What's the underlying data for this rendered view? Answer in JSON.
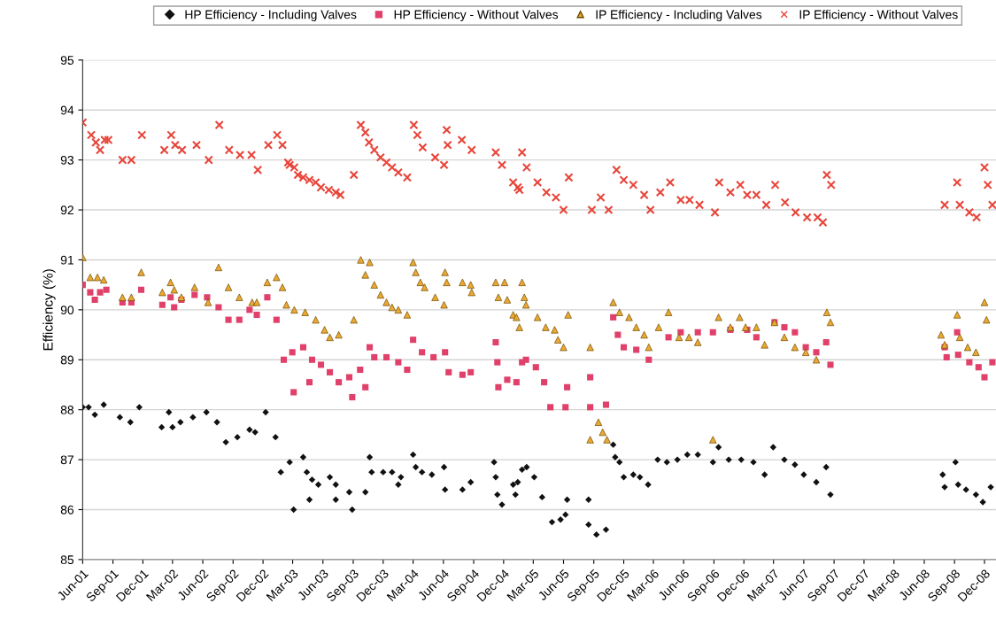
{
  "chart_data": {
    "type": "scatter",
    "ylabel": "Efficiency (%)",
    "legend": "top",
    "grid": "y",
    "xlim": [
      "2001-06-01",
      "2009-01-05"
    ],
    "ylim": [
      85,
      95
    ],
    "yticks": [
      85,
      86,
      87,
      88,
      89,
      90,
      91,
      92,
      93,
      94,
      95
    ],
    "xticks": [
      {
        "value": "2001-06-01",
        "label": "Jun-01"
      },
      {
        "value": "2001-09-01",
        "label": "Sep-01"
      },
      {
        "value": "2001-12-01",
        "label": "Dec-01"
      },
      {
        "value": "2002-03-01",
        "label": "Mar-02"
      },
      {
        "value": "2002-06-01",
        "label": "Jun-02"
      },
      {
        "value": "2002-09-01",
        "label": "Sep-02"
      },
      {
        "value": "2002-12-01",
        "label": "Dec-02"
      },
      {
        "value": "2003-03-01",
        "label": "Mar-03"
      },
      {
        "value": "2003-06-01",
        "label": "Jun-03"
      },
      {
        "value": "2003-09-01",
        "label": "Sep-03"
      },
      {
        "value": "2003-12-01",
        "label": "Dec-03"
      },
      {
        "value": "2004-03-01",
        "label": "Mar-04"
      },
      {
        "value": "2004-06-01",
        "label": "Jun-04"
      },
      {
        "value": "2004-09-01",
        "label": "Sep-04"
      },
      {
        "value": "2004-12-01",
        "label": "Dec-04"
      },
      {
        "value": "2005-03-01",
        "label": "Mar-05"
      },
      {
        "value": "2005-06-01",
        "label": "Jun-05"
      },
      {
        "value": "2005-09-01",
        "label": "Sep-05"
      },
      {
        "value": "2005-12-01",
        "label": "Dec-05"
      },
      {
        "value": "2006-03-01",
        "label": "Mar-06"
      },
      {
        "value": "2006-06-01",
        "label": "Jun-06"
      },
      {
        "value": "2006-09-01",
        "label": "Sep-06"
      },
      {
        "value": "2006-12-01",
        "label": "Dec-06"
      },
      {
        "value": "2007-03-01",
        "label": "Mar-07"
      },
      {
        "value": "2007-06-01",
        "label": "Jun-07"
      },
      {
        "value": "2007-09-01",
        "label": "Sep-07"
      },
      {
        "value": "2007-12-01",
        "label": "Dec-07"
      },
      {
        "value": "2008-03-01",
        "label": "Mar-08"
      },
      {
        "value": "2008-06-01",
        "label": "Jun-08"
      },
      {
        "value": "2008-09-01",
        "label": "Sep-08"
      },
      {
        "value": "2008-12-01",
        "label": "Dec-08"
      }
    ],
    "series": [
      {
        "name": "HP Efficiency - Including Valves",
        "color": "#111111",
        "marker": "diamond",
        "x": [
          "2001-06-01",
          "2001-06-19",
          "2001-07-08",
          "2001-08-04",
          "2001-09-22",
          "2001-10-24",
          "2001-11-20",
          "2002-01-27",
          "2002-02-18",
          "2002-03-01",
          "2002-03-25",
          "2002-05-02",
          "2002-06-12",
          "2002-07-14",
          "2002-08-10",
          "2002-09-14",
          "2002-10-21",
          "2002-11-07",
          "2002-12-09",
          "2003-01-08",
          "2003-01-24",
          "2003-02-20",
          "2003-03-04",
          "2003-04-02",
          "2003-04-13",
          "2003-04-21",
          "2003-04-29",
          "2003-05-18",
          "2003-06-22",
          "2003-07-10",
          "2003-07-10",
          "2003-08-20",
          "2003-08-29",
          "2003-10-08",
          "2003-10-21",
          "2003-10-27",
          "2003-12-01",
          "2003-12-28",
          "2004-01-16",
          "2004-01-24",
          "2004-03-01",
          "2004-03-09",
          "2004-03-28",
          "2004-04-27",
          "2004-06-03",
          "2004-06-06",
          "2004-07-29",
          "2004-08-23",
          "2004-11-02",
          "2004-11-07",
          "2004-11-12",
          "2004-11-26",
          "2004-12-30",
          "2005-01-06",
          "2005-01-13",
          "2005-01-26",
          "2005-02-09",
          "2005-03-04",
          "2005-03-28",
          "2005-04-27",
          "2005-05-23",
          "2005-06-07",
          "2005-06-12",
          "2005-08-16",
          "2005-08-16",
          "2005-09-09",
          "2005-10-08",
          "2005-10-30",
          "2005-11-05",
          "2005-11-18",
          "2005-12-01",
          "2005-12-30",
          "2006-01-19",
          "2006-02-13",
          "2006-03-14",
          "2006-04-11",
          "2006-05-13",
          "2006-06-12",
          "2006-07-14",
          "2006-08-29",
          "2006-09-15",
          "2006-10-16",
          "2006-11-23",
          "2006-12-30",
          "2007-02-02",
          "2007-02-28",
          "2007-04-03",
          "2007-05-05",
          "2007-06-01",
          "2007-07-09",
          "2007-08-08",
          "2007-08-21",
          "2008-07-27",
          "2008-08-02",
          "2008-09-04",
          "2008-09-12",
          "2008-10-06",
          "2008-11-05",
          "2008-11-26",
          "2008-12-20"
        ],
        "values": [
          88.05,
          88.05,
          87.9,
          88.1,
          87.85,
          87.75,
          88.05,
          87.65,
          87.95,
          87.65,
          87.75,
          87.85,
          87.95,
          87.75,
          87.35,
          87.45,
          87.6,
          87.55,
          87.95,
          87.45,
          86.75,
          86.95,
          86.0,
          87.05,
          86.75,
          86.2,
          86.6,
          86.5,
          86.65,
          86.5,
          86.2,
          86.35,
          86.0,
          86.35,
          87.05,
          86.75,
          86.75,
          86.75,
          86.5,
          86.65,
          87.1,
          86.85,
          86.75,
          86.7,
          86.85,
          86.4,
          86.4,
          86.55,
          86.95,
          86.65,
          86.3,
          86.1,
          86.5,
          86.3,
          86.55,
          86.8,
          86.85,
          86.65,
          86.25,
          85.75,
          85.8,
          85.9,
          86.2,
          86.2,
          85.7,
          85.5,
          85.6,
          87.3,
          87.05,
          86.95,
          86.65,
          86.7,
          86.65,
          86.5,
          87.0,
          86.95,
          87.0,
          87.1,
          87.1,
          86.95,
          87.25,
          87.0,
          87.0,
          86.95,
          86.7,
          87.25,
          87.0,
          86.9,
          86.7,
          86.55,
          86.85,
          86.3,
          86.7,
          86.45,
          86.95,
          86.5,
          86.4,
          86.3,
          86.15,
          86.45
        ]
      },
      {
        "name": "HP Efficiency - Without Valves",
        "color": "#e0406a",
        "marker": "square",
        "x": [
          "2001-06-01",
          "2001-06-24",
          "2001-07-08",
          "2001-07-24",
          "2001-08-12",
          "2001-09-30",
          "2001-10-27",
          "2001-11-26",
          "2002-01-29",
          "2002-02-23",
          "2002-03-06",
          "2002-03-28",
          "2002-05-07",
          "2002-06-14",
          "2002-07-19",
          "2002-08-18",
          "2002-09-20",
          "2002-10-21",
          "2002-11-12",
          "2002-12-14",
          "2003-01-11",
          "2003-02-02",
          "2003-02-28",
          "2003-03-04",
          "2003-04-02",
          "2003-04-21",
          "2003-04-29",
          "2003-05-26",
          "2003-06-22",
          "2003-07-19",
          "2003-08-20",
          "2003-08-29",
          "2003-09-22",
          "2003-10-08",
          "2003-10-21",
          "2003-11-04",
          "2003-12-11",
          "2004-01-16",
          "2004-02-12",
          "2004-03-01",
          "2004-03-28",
          "2004-05-02",
          "2004-06-06",
          "2004-06-17",
          "2004-07-29",
          "2004-08-23",
          "2004-11-07",
          "2004-11-12",
          "2004-11-15",
          "2004-12-12",
          "2005-01-09",
          "2005-01-26",
          "2005-02-07",
          "2005-03-09",
          "2005-04-03",
          "2005-04-22",
          "2005-06-07",
          "2005-06-12",
          "2005-08-21",
          "2005-08-21",
          "2005-10-08",
          "2005-10-30",
          "2005-11-13",
          "2005-12-01",
          "2006-01-08",
          "2006-02-15",
          "2006-04-16",
          "2006-05-23",
          "2006-07-14",
          "2006-08-29",
          "2006-10-21",
          "2006-12-11",
          "2007-01-08",
          "2007-03-04",
          "2007-04-03",
          "2007-05-05",
          "2007-06-07",
          "2007-07-09",
          "2007-08-08",
          "2007-08-21",
          "2008-08-02",
          "2008-08-08",
          "2008-09-09",
          "2008-09-12",
          "2008-10-16",
          "2008-11-13",
          "2008-12-01",
          "2008-12-25"
        ],
        "values": [
          90.5,
          90.35,
          90.2,
          90.35,
          90.4,
          90.15,
          90.15,
          90.4,
          90.1,
          90.25,
          90.05,
          90.2,
          90.3,
          90.25,
          90.05,
          89.8,
          89.8,
          90.0,
          89.9,
          90.25,
          89.8,
          89.0,
          89.15,
          88.35,
          89.25,
          88.55,
          89.0,
          88.9,
          88.75,
          88.55,
          88.65,
          88.25,
          88.8,
          88.45,
          89.25,
          89.05,
          89.05,
          88.95,
          88.8,
          89.4,
          89.15,
          89.05,
          89.15,
          88.75,
          88.7,
          88.75,
          89.35,
          88.95,
          88.45,
          88.6,
          88.55,
          88.95,
          89.0,
          88.85,
          88.55,
          88.05,
          88.05,
          88.45,
          88.65,
          88.05,
          88.1,
          89.85,
          89.5,
          89.25,
          89.2,
          89.0,
          89.45,
          89.55,
          89.55,
          89.55,
          89.6,
          89.6,
          89.45,
          89.75,
          89.65,
          89.55,
          89.25,
          89.15,
          89.35,
          88.9,
          89.25,
          89.05,
          89.55,
          89.1,
          88.95,
          88.85,
          88.65,
          88.95
        ]
      },
      {
        "name": "IP Efficiency - Including Valves",
        "color": "#eba832",
        "marker": "triangle",
        "x": [
          "2001-06-01",
          "2001-06-24",
          "2001-07-16",
          "2001-08-04",
          "2001-09-30",
          "2001-10-27",
          "2001-11-26",
          "2002-01-29",
          "2002-02-23",
          "2002-03-06",
          "2002-03-28",
          "2002-05-07",
          "2002-06-17",
          "2002-07-19",
          "2002-08-18",
          "2002-09-20",
          "2002-10-29",
          "2002-11-12",
          "2002-12-14",
          "2003-01-11",
          "2003-01-29",
          "2003-02-10",
          "2003-03-06",
          "2003-04-08",
          "2003-05-10",
          "2003-06-06",
          "2003-06-22",
          "2003-07-19",
          "2003-09-03",
          "2003-09-24",
          "2003-10-08",
          "2003-10-21",
          "2003-11-04",
          "2003-11-23",
          "2003-12-11",
          "2003-12-28",
          "2004-01-16",
          "2004-02-12",
          "2004-03-01",
          "2004-03-09",
          "2004-03-23",
          "2004-04-05",
          "2004-05-07",
          "2004-06-03",
          "2004-06-06",
          "2004-06-11",
          "2004-07-29",
          "2004-08-23",
          "2004-08-26",
          "2004-11-07",
          "2004-11-15",
          "2004-12-04",
          "2004-12-12",
          "2004-12-30",
          "2005-01-09",
          "2005-01-18",
          "2005-01-26",
          "2005-02-02",
          "2005-02-07",
          "2005-03-14",
          "2005-04-08",
          "2005-05-05",
          "2005-05-15",
          "2005-06-01",
          "2005-06-15",
          "2005-08-21",
          "2005-08-21",
          "2005-09-15",
          "2005-09-28",
          "2005-10-11",
          "2005-10-30",
          "2005-11-18",
          "2005-12-17",
          "2006-01-08",
          "2006-02-01",
          "2006-02-15",
          "2006-03-17",
          "2006-04-16",
          "2006-05-18",
          "2006-06-17",
          "2006-07-14",
          "2006-08-29",
          "2006-09-15",
          "2006-10-21",
          "2006-11-18",
          "2006-12-06",
          "2007-01-08",
          "2007-02-02",
          "2007-03-04",
          "2007-04-03",
          "2007-05-05",
          "2007-06-07",
          "2007-07-09",
          "2007-08-10",
          "2007-08-21",
          "2008-07-22",
          "2008-08-02",
          "2008-09-09",
          "2008-09-17",
          "2008-10-11",
          "2008-11-05",
          "2008-12-01",
          "2008-12-07"
        ],
        "values": [
          91.05,
          90.65,
          90.65,
          90.6,
          90.25,
          90.25,
          90.75,
          90.35,
          90.55,
          90.4,
          90.25,
          90.45,
          90.15,
          90.85,
          90.45,
          90.25,
          90.15,
          90.15,
          90.55,
          90.65,
          90.45,
          90.1,
          90.0,
          89.95,
          89.8,
          89.6,
          89.45,
          89.5,
          89.8,
          91.0,
          90.7,
          90.95,
          90.5,
          90.3,
          90.15,
          90.05,
          90.0,
          89.9,
          90.95,
          90.75,
          90.55,
          90.45,
          90.25,
          90.1,
          90.75,
          90.55,
          90.55,
          90.5,
          90.35,
          90.55,
          90.25,
          90.55,
          90.2,
          89.9,
          89.85,
          89.65,
          90.55,
          90.25,
          90.1,
          89.85,
          89.65,
          89.6,
          89.4,
          89.25,
          89.9,
          89.25,
          87.4,
          87.75,
          87.55,
          87.4,
          90.15,
          89.95,
          89.85,
          89.65,
          89.5,
          89.25,
          89.65,
          89.95,
          89.45,
          89.45,
          89.35,
          87.4,
          89.85,
          89.65,
          89.85,
          89.65,
          89.65,
          89.3,
          89.75,
          89.45,
          89.25,
          89.15,
          89.0,
          89.95,
          89.75,
          89.5,
          89.3,
          89.9,
          89.45,
          89.25,
          89.15,
          90.15,
          89.8
        ]
      },
      {
        "name": "IP Efficiency - Without Valves",
        "color": "#e8453a",
        "marker": "cross",
        "x": [
          "2001-06-01",
          "2001-06-27",
          "2001-07-11",
          "2001-07-24",
          "2001-08-07",
          "2001-08-18",
          "2001-09-30",
          "2001-10-27",
          "2001-11-28",
          "2002-02-04",
          "2002-02-25",
          "2002-03-09",
          "2002-03-30",
          "2002-05-13",
          "2002-06-19",
          "2002-07-21",
          "2002-08-20",
          "2002-09-22",
          "2002-10-27",
          "2002-11-15",
          "2002-12-17",
          "2003-01-13",
          "2003-01-29",
          "2003-02-15",
          "2003-02-20",
          "2003-03-06",
          "2003-03-17",
          "2003-04-02",
          "2003-04-21",
          "2003-05-10",
          "2003-05-26",
          "2003-06-19",
          "2003-07-10",
          "2003-07-24",
          "2003-09-03",
          "2003-09-24",
          "2003-10-08",
          "2003-10-19",
          "2003-11-04",
          "2003-11-23",
          "2003-12-11",
          "2003-12-28",
          "2004-01-16",
          "2004-02-12",
          "2004-03-03",
          "2004-03-14",
          "2004-03-30",
          "2004-05-07",
          "2004-06-03",
          "2004-06-11",
          "2004-06-14",
          "2004-07-27",
          "2004-08-26",
          "2004-11-07",
          "2004-11-26",
          "2004-12-30",
          "2005-01-13",
          "2005-01-18",
          "2005-01-26",
          "2005-02-09",
          "2005-03-14",
          "2005-04-10",
          "2005-05-09",
          "2005-06-01",
          "2005-06-17",
          "2005-08-26",
          "2005-09-22",
          "2005-10-16",
          "2005-11-09",
          "2005-12-01",
          "2005-12-30",
          "2006-02-01",
          "2006-02-20",
          "2006-03-22",
          "2006-04-21",
          "2006-05-23",
          "2006-06-19",
          "2006-07-19",
          "2006-09-04",
          "2006-09-17",
          "2006-10-21",
          "2006-11-20",
          "2006-12-11",
          "2007-01-08",
          "2007-02-07",
          "2007-03-06",
          "2007-04-05",
          "2007-05-07",
          "2007-06-11",
          "2007-07-13",
          "2007-07-29",
          "2007-08-10",
          "2007-08-23",
          "2008-08-02",
          "2008-09-09",
          "2008-09-17",
          "2008-10-16",
          "2008-11-07",
          "2008-12-01",
          "2008-12-11",
          "2008-12-25"
        ],
        "values": [
          93.75,
          93.5,
          93.35,
          93.2,
          93.4,
          93.4,
          93.0,
          93.0,
          93.5,
          93.2,
          93.5,
          93.3,
          93.2,
          93.3,
          93.0,
          93.7,
          93.2,
          93.1,
          93.1,
          92.8,
          93.3,
          93.5,
          93.3,
          92.95,
          92.9,
          92.85,
          92.7,
          92.65,
          92.6,
          92.55,
          92.45,
          92.4,
          92.35,
          92.3,
          92.7,
          93.7,
          93.55,
          93.35,
          93.2,
          93.05,
          92.95,
          92.85,
          92.75,
          92.65,
          93.7,
          93.5,
          93.25,
          93.05,
          92.9,
          93.6,
          93.3,
          93.4,
          93.2,
          93.15,
          92.9,
          92.55,
          92.45,
          92.4,
          93.15,
          92.85,
          92.55,
          92.35,
          92.25,
          92.0,
          92.65,
          92.0,
          92.25,
          92.0,
          92.8,
          92.6,
          92.5,
          92.3,
          92.0,
          92.35,
          92.55,
          92.2,
          92.2,
          92.1,
          91.95,
          92.55,
          92.35,
          92.5,
          92.3,
          92.3,
          92.1,
          92.5,
          92.15,
          91.95,
          91.85,
          91.85,
          91.75,
          92.7,
          92.5,
          92.1,
          92.55,
          92.1,
          91.95,
          91.85,
          92.85,
          92.5,
          92.1
        ]
      }
    ]
  }
}
